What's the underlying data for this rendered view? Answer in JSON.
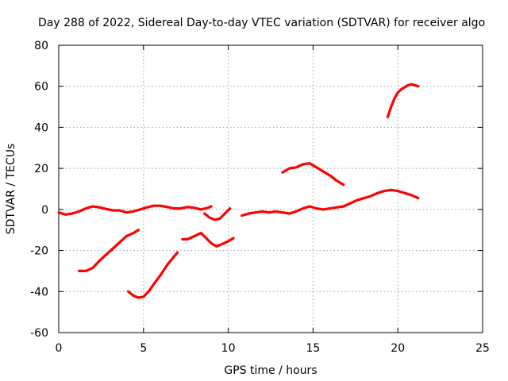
{
  "chart_data": {
    "type": "scatter",
    "title": "Day 288 of 2022, Sidereal Day-to-day VTEC variation (SDTVAR) for receiver algo",
    "xlabel": "GPS time / hours",
    "ylabel": "SDTVAR / TECUs",
    "xlim": [
      0,
      25
    ],
    "ylim": [
      -60,
      80
    ],
    "xticks": [
      "0",
      "5",
      "10",
      "15",
      "20",
      "25"
    ],
    "yticks": [
      "-60",
      "-40",
      "-20",
      "0",
      "20",
      "40",
      "60",
      "80"
    ],
    "grid": true,
    "color": "#ff0000",
    "series": [
      {
        "name": "arc-main-1",
        "x": [
          0.0,
          0.4,
          0.8,
          1.2,
          1.6,
          2.0,
          2.4,
          2.8,
          3.2,
          3.6,
          4.0,
          4.4,
          4.8,
          5.2,
          5.6,
          6.0,
          6.4,
          6.8,
          7.2,
          7.6,
          8.0,
          8.4,
          8.8,
          9.0
        ],
        "y": [
          -1.5,
          -2.5,
          -2.0,
          -1.0,
          0.5,
          1.5,
          1.0,
          0.2,
          -0.5,
          -0.5,
          -1.5,
          -1.0,
          0.0,
          1.0,
          1.8,
          1.8,
          1.2,
          0.5,
          0.5,
          1.2,
          0.8,
          0.0,
          0.8,
          1.5
        ]
      },
      {
        "name": "arc-main-2",
        "x": [
          8.6,
          8.9,
          9.2,
          9.5,
          9.8,
          10.1
        ],
        "y": [
          -2.0,
          -4.0,
          -5.0,
          -4.5,
          -2.0,
          0.5
        ]
      },
      {
        "name": "arc-main-3",
        "x": [
          10.8,
          11.2,
          11.6,
          12.0,
          12.4,
          12.8,
          13.2,
          13.6,
          14.0,
          14.4,
          14.8,
          15.2,
          15.6,
          16.0,
          16.4,
          16.8,
          17.2,
          17.6,
          18.0,
          18.4,
          18.8,
          19.2,
          19.6,
          20.0,
          20.4,
          20.8,
          21.2
        ],
        "y": [
          -3.0,
          -2.0,
          -1.5,
          -1.0,
          -1.5,
          -1.0,
          -1.5,
          -2.0,
          -1.0,
          0.5,
          1.5,
          0.5,
          0.0,
          0.5,
          1.0,
          1.5,
          3.0,
          4.5,
          5.5,
          6.5,
          8.0,
          9.0,
          9.5,
          9.0,
          8.0,
          7.0,
          5.5
        ]
      },
      {
        "name": "arc-lower-1",
        "x": [
          1.2,
          1.6,
          2.0,
          2.4,
          2.8,
          3.2,
          3.6,
          4.0,
          4.4,
          4.7
        ],
        "y": [
          -30.0,
          -30.0,
          -28.5,
          -25.0,
          -22.0,
          -19.0,
          -16.0,
          -13.0,
          -11.5,
          -10.0
        ]
      },
      {
        "name": "arc-lower-2",
        "x": [
          4.1,
          4.4,
          4.7,
          5.0,
          5.3,
          5.6,
          6.0,
          6.4,
          6.8,
          7.0
        ],
        "y": [
          -40.0,
          -42.0,
          -43.0,
          -42.5,
          -40.0,
          -36.5,
          -32.0,
          -27.0,
          -23.0,
          -21.0
        ]
      },
      {
        "name": "arc-lower-3",
        "x": [
          7.3,
          7.6,
          8.0,
          8.4,
          8.7,
          9.0,
          9.3,
          9.6,
          10.0,
          10.3
        ],
        "y": [
          -14.5,
          -14.5,
          -13.0,
          -11.5,
          -14.0,
          -16.5,
          -18.0,
          -17.0,
          -15.5,
          -14.0
        ]
      },
      {
        "name": "arc-upper-1",
        "x": [
          13.2,
          13.6,
          14.0,
          14.4,
          14.8,
          15.2,
          15.6,
          16.0,
          16.4,
          16.8
        ],
        "y": [
          18.0,
          20.0,
          20.5,
          22.0,
          22.5,
          20.5,
          18.5,
          16.5,
          14.0,
          12.0
        ]
      },
      {
        "name": "arc-upper-2",
        "x": [
          19.4,
          19.6,
          19.8,
          20.0,
          20.2,
          20.4,
          20.6,
          20.8,
          21.0,
          21.2
        ],
        "y": [
          45.0,
          50.0,
          54.0,
          57.0,
          58.5,
          59.5,
          60.5,
          61.0,
          60.5,
          60.0
        ]
      }
    ]
  }
}
